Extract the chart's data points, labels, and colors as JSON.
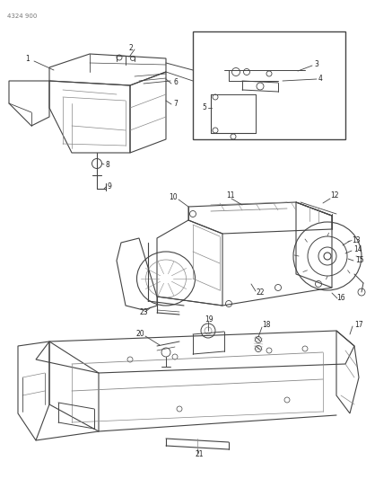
{
  "page_id": "4324 900",
  "background": "#ffffff",
  "lc": "#444444",
  "lc_light": "#888888",
  "lc_thin": "#999999",
  "fs_label": 5.5,
  "fs_pageid": 5.0
}
